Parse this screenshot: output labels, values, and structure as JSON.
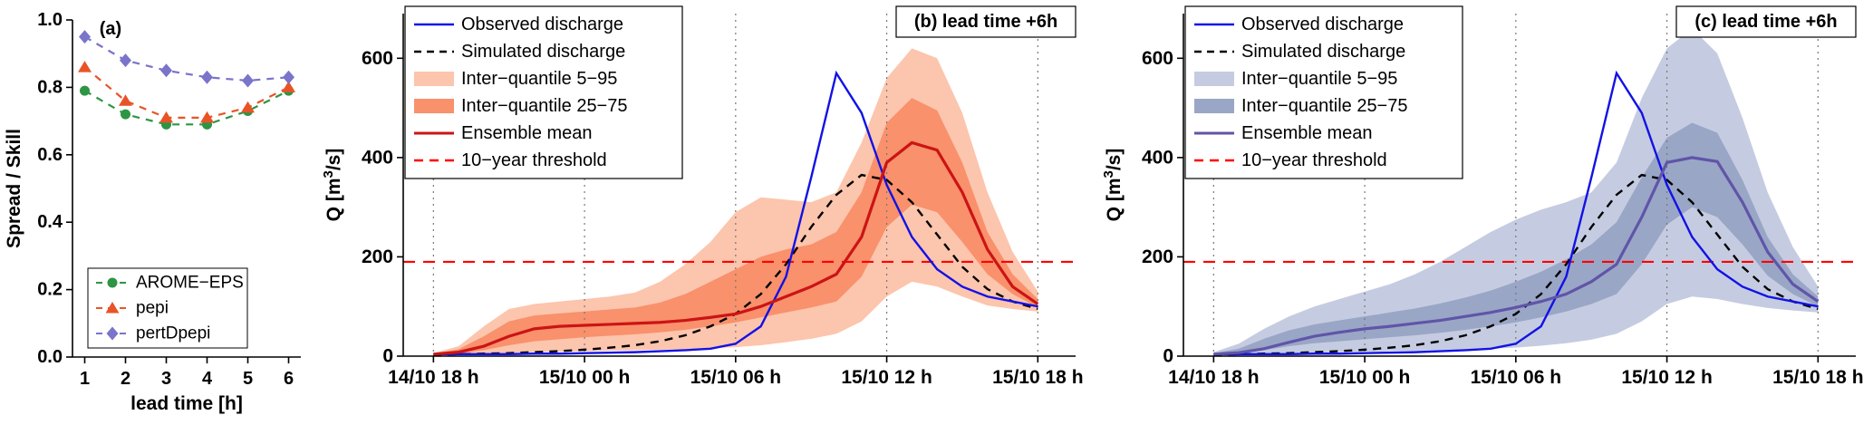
{
  "figure": {
    "background": "#ffffff"
  },
  "chart_data": [
    {
      "id": "a",
      "type": "line",
      "panel_label": "(a)",
      "xlabel": "lead time [h]",
      "ylabel": "Spread / Skill",
      "xlim": [
        0.7,
        6.3
      ],
      "ylim": [
        0,
        1
      ],
      "xticks": [
        1,
        2,
        3,
        4,
        5,
        6
      ],
      "xtick_labels": [
        "1",
        "2",
        "3",
        "4",
        "5",
        "6"
      ],
      "yticks": [
        0,
        0.2,
        0.4,
        0.6,
        0.8,
        1
      ],
      "ytick_labels": [
        "0.0",
        "0.2",
        "0.4",
        "0.6",
        "0.8",
        "1.0"
      ],
      "grid": false,
      "legend_position": "bottom-left",
      "x": [
        1,
        2,
        3,
        4,
        5,
        6
      ],
      "series": [
        {
          "name": "AROME−EPS",
          "color": "#2d9544",
          "marker": "circle",
          "linestyle": "dashed",
          "values": [
            0.79,
            0.72,
            0.69,
            0.69,
            0.73,
            0.79
          ]
        },
        {
          "name": "pepi",
          "color": "#e85427",
          "marker": "triangle",
          "linestyle": "dashed",
          "values": [
            0.86,
            0.76,
            0.71,
            0.71,
            0.74,
            0.8
          ]
        },
        {
          "name": "pertDpepi",
          "color": "#7a74ca",
          "marker": "diamond",
          "linestyle": "dashed",
          "values": [
            0.95,
            0.88,
            0.85,
            0.83,
            0.82,
            0.83
          ]
        }
      ]
    },
    {
      "id": "b",
      "type": "line",
      "panel_label": "(b) lead time +6h",
      "ylabel_parts": {
        "pre": "Q [m",
        "sup": "3",
        "post": "/s]"
      },
      "xlim": [
        -1.2,
        25.5
      ],
      "ylim": [
        0,
        690
      ],
      "xticks": [
        0,
        6,
        12,
        18,
        24
      ],
      "xtick_labels": [
        "14/10 18 h",
        "15/10 00 h",
        "15/10 06 h",
        "15/10 12 h",
        "15/10 18 h"
      ],
      "yticks": [
        0,
        200,
        400,
        600
      ],
      "ytick_labels": [
        "0",
        "200",
        "400",
        "600"
      ],
      "grid_x": [
        0,
        6,
        12,
        18,
        24
      ],
      "legend_position": "top-left",
      "threshold": {
        "label": "10−year threshold",
        "value": 190,
        "color": "#ff0000"
      },
      "x_hours": [
        0,
        1,
        2,
        3,
        4,
        5,
        6,
        7,
        8,
        9,
        10,
        11,
        12,
        13,
        14,
        15,
        16,
        17,
        18,
        19,
        20,
        21,
        22,
        23,
        24
      ],
      "bands": [
        {
          "name": "Inter−quantile 5−95",
          "color": "#fcc5ad",
          "upper": [
            6,
            20,
            60,
            95,
            105,
            110,
            115,
            120,
            128,
            150,
            185,
            230,
            290,
            320,
            315,
            310,
            330,
            430,
            560,
            620,
            600,
            490,
            330,
            210,
            130
          ],
          "lower": [
            2,
            3,
            4,
            6,
            8,
            9,
            10,
            11,
            12,
            13,
            14,
            16,
            18,
            22,
            28,
            35,
            45,
            70,
            120,
            150,
            140,
            120,
            102,
            95,
            90
          ]
        },
        {
          "name": "Inter−quantile 25−75",
          "color": "#f8916c",
          "upper": [
            5,
            14,
            40,
            70,
            82,
            86,
            90,
            94,
            98,
            108,
            125,
            150,
            175,
            200,
            215,
            225,
            250,
            330,
            470,
            520,
            495,
            390,
            250,
            165,
            115
          ],
          "lower": [
            3,
            5,
            12,
            22,
            30,
            34,
            38,
            41,
            44,
            48,
            53,
            60,
            68,
            78,
            88,
            98,
            110,
            160,
            260,
            305,
            290,
            230,
            165,
            125,
            98
          ]
        }
      ],
      "lines": [
        {
          "name": "Observed discharge",
          "color": "#1212e6",
          "style": "solid",
          "values": [
            4,
            4,
            4,
            4,
            5,
            5,
            6,
            7,
            8,
            10,
            12,
            15,
            25,
            60,
            160,
            360,
            570,
            490,
            345,
            240,
            175,
            140,
            120,
            110,
            100
          ]
        },
        {
          "name": "Simulated discharge",
          "color": "#000000",
          "style": "dashed",
          "values": [
            3,
            4,
            5,
            6,
            8,
            10,
            13,
            17,
            22,
            30,
            42,
            60,
            85,
            125,
            185,
            260,
            325,
            365,
            355,
            310,
            245,
            180,
            135,
            110,
            95
          ]
        },
        {
          "name": "Ensemble mean",
          "color": "#cc1414",
          "style": "solid",
          "values": [
            4,
            8,
            20,
            40,
            55,
            60,
            62,
            64,
            66,
            68,
            72,
            78,
            85,
            100,
            120,
            140,
            165,
            240,
            390,
            430,
            415,
            330,
            215,
            140,
            105
          ]
        }
      ]
    },
    {
      "id": "c",
      "type": "line",
      "panel_label": "(c) lead time +6h",
      "ylabel_parts": {
        "pre": "Q [m",
        "sup": "3",
        "post": "/s]"
      },
      "xlim": [
        -1.2,
        25.5
      ],
      "ylim": [
        0,
        690
      ],
      "xticks": [
        0,
        6,
        12,
        18,
        24
      ],
      "xtick_labels": [
        "14/10 18 h",
        "15/10 00 h",
        "15/10 06 h",
        "15/10 12 h",
        "15/10 18 h"
      ],
      "yticks": [
        0,
        200,
        400,
        600
      ],
      "ytick_labels": [
        "0",
        "200",
        "400",
        "600"
      ],
      "grid_x": [
        0,
        6,
        12,
        18,
        24
      ],
      "legend_position": "top-left",
      "threshold": {
        "label": "10−year threshold",
        "value": 190,
        "color": "#ff0000"
      },
      "x_hours": [
        0,
        1,
        2,
        3,
        4,
        5,
        6,
        7,
        8,
        9,
        10,
        11,
        12,
        13,
        14,
        15,
        16,
        17,
        18,
        19,
        20,
        21,
        22,
        23,
        24
      ],
      "bands": [
        {
          "name": "Inter−quantile 5−95",
          "color": "#c5cce1",
          "upper": [
            8,
            25,
            55,
            80,
            100,
            115,
            130,
            145,
            165,
            190,
            220,
            250,
            275,
            295,
            310,
            330,
            390,
            520,
            620,
            660,
            610,
            480,
            330,
            220,
            140
          ],
          "lower": [
            2,
            3,
            4,
            5,
            7,
            8,
            9,
            10,
            11,
            12,
            13,
            15,
            17,
            21,
            26,
            33,
            45,
            70,
            105,
            120,
            115,
            105,
            97,
            92,
            88
          ]
        },
        {
          "name": "Inter−quantile 25−75",
          "color": "#9aa6c6",
          "upper": [
            6,
            15,
            35,
            52,
            64,
            72,
            80,
            88,
            96,
            106,
            118,
            132,
            150,
            170,
            195,
            225,
            270,
            360,
            440,
            470,
            450,
            355,
            240,
            165,
            120
          ],
          "lower": [
            3,
            6,
            12,
            20,
            26,
            30,
            34,
            38,
            42,
            47,
            53,
            60,
            68,
            78,
            90,
            105,
            125,
            185,
            265,
            300,
            280,
            225,
            162,
            125,
            100
          ]
        }
      ],
      "lines": [
        {
          "name": "Observed discharge",
          "color": "#1212e6",
          "style": "solid",
          "values": [
            4,
            4,
            4,
            4,
            5,
            5,
            6,
            7,
            8,
            10,
            12,
            15,
            25,
            60,
            160,
            360,
            570,
            490,
            345,
            240,
            175,
            140,
            120,
            110,
            100
          ]
        },
        {
          "name": "Simulated discharge",
          "color": "#000000",
          "style": "dashed",
          "values": [
            3,
            4,
            5,
            6,
            8,
            10,
            13,
            17,
            22,
            30,
            42,
            60,
            85,
            125,
            185,
            260,
            325,
            365,
            355,
            310,
            245,
            180,
            135,
            110,
            95
          ]
        },
        {
          "name": "Ensemble mean",
          "color": "#6055a8",
          "style": "solid",
          "values": [
            4,
            7,
            15,
            28,
            40,
            48,
            55,
            60,
            66,
            72,
            80,
            88,
            98,
            110,
            125,
            150,
            185,
            280,
            390,
            400,
            392,
            310,
            210,
            145,
            110
          ]
        }
      ]
    }
  ]
}
